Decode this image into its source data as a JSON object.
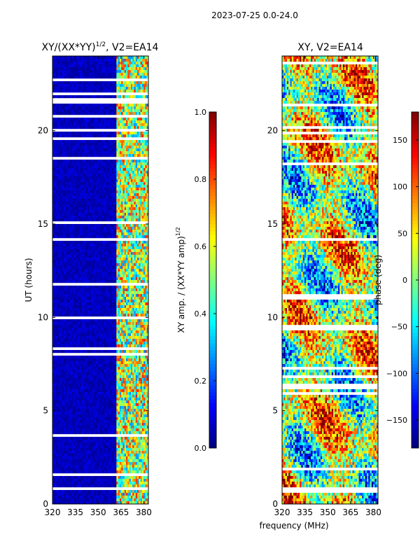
{
  "chart_data": {
    "suptitle": "2023-07-25 0.0-24.0",
    "xlabel": "frequency (MHz)",
    "panels": [
      {
        "type": "heatmap",
        "title": "XY/(XX*YY)",
        "title_sup": "1/2",
        "title_suffix": ", V2=EA14",
        "ylabel": "UT (hours)",
        "xlim": [
          320,
          383
        ],
        "ylim": [
          0,
          24
        ],
        "x_ticks": [
          "320",
          "335",
          "350",
          "365",
          "380"
        ],
        "x_tick_values": [
          320,
          335,
          350,
          365,
          380
        ],
        "y_ticks": [
          "0",
          "5",
          "10",
          "15",
          "20"
        ],
        "y_tick_values": [
          0,
          5,
          10,
          15,
          20
        ],
        "colorbar": {
          "label": "XY amp. / (XX*YY amp)",
          "label_sup": "1/2",
          "range": [
            0.0,
            1.0
          ],
          "ticks": [
            "0.0",
            "0.2",
            "0.4",
            "0.6",
            "0.8",
            "1.0"
          ],
          "tick_values": [
            0.0,
            0.2,
            0.4,
            0.6,
            0.8,
            1.0
          ]
        }
      },
      {
        "type": "heatmap",
        "title": "XY, V2=EA14",
        "ylabel": "",
        "xlim": [
          320,
          383
        ],
        "ylim": [
          0,
          24
        ],
        "x_ticks": [
          "320",
          "335",
          "350",
          "365",
          "380"
        ],
        "x_tick_values": [
          320,
          335,
          350,
          365,
          380
        ],
        "y_ticks": [
          "0",
          "5",
          "10",
          "15",
          "20"
        ],
        "y_tick_values": [
          0,
          5,
          10,
          15,
          20
        ],
        "colorbar": {
          "label": "phase (deg)",
          "range": [
            -180,
            180
          ],
          "ticks": [
            "−150",
            "−100",
            "−50",
            "0",
            "50",
            "100",
            "150"
          ],
          "tick_values": [
            -150,
            -100,
            -50,
            0,
            50,
            100,
            150
          ]
        }
      }
    ]
  }
}
